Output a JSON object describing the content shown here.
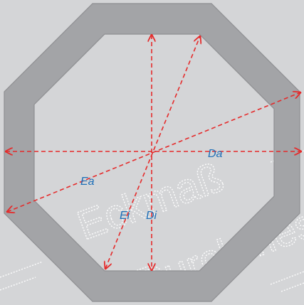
{
  "background_color": "#d4d5d7",
  "profile_color": "#a3a4a7",
  "profile_edge_color": "#8e8f92",
  "arrow_color": "#e52b2b",
  "label_color": "#1d6fb8",
  "watermark_color": "#ffffff",
  "labels": {
    "outer_across_flats": "Da",
    "outer_across_corners": "Ea",
    "inner_across_corners": "Ei",
    "inner_across_flats": "Di"
  },
  "watermark_text": [
    "Eckmaß",
    "Durchmesser"
  ]
}
